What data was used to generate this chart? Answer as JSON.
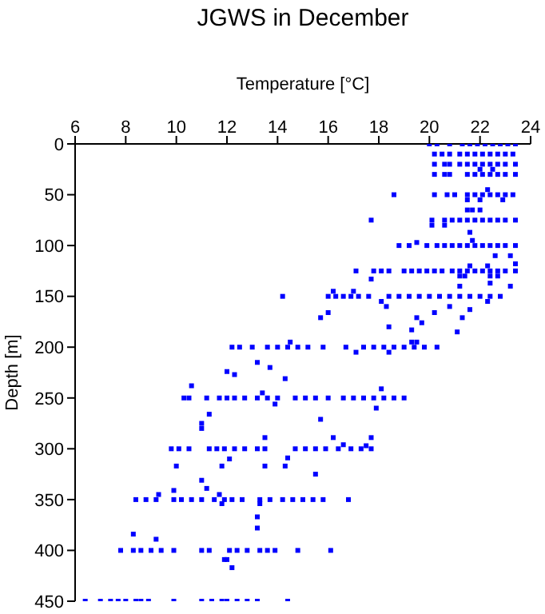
{
  "chart_data": {
    "type": "scatter",
    "title": "JGWS in December",
    "xlabel": "Temperature [°C]",
    "ylabel": "Depth [m]",
    "xlim": [
      6,
      24
    ],
    "xticks": [
      6,
      8,
      10,
      12,
      14,
      16,
      18,
      20,
      22,
      24
    ],
    "ylim": [
      450,
      0
    ],
    "yticks": [
      0,
      50,
      100,
      150,
      200,
      250,
      300,
      350,
      400,
      450
    ],
    "grid": false,
    "legend": false,
    "marker": "square",
    "series": [
      {
        "color": "#0000ff",
        "x": [
          20.0,
          20.3,
          20.8,
          21.3,
          21.6,
          21.9,
          22.2,
          22.5,
          22.8,
          23.1,
          23.4
        ],
        "values": [
          0,
          0,
          0,
          0,
          0,
          0,
          0,
          0,
          0,
          0,
          0
        ]
      },
      {
        "color": "#0000ff",
        "x": [
          20.2,
          20.5,
          20.8,
          21.2,
          21.5,
          21.8,
          22.1,
          22.4,
          22.7,
          23.0,
          23.3
        ],
        "values": [
          10,
          10,
          10,
          10,
          10,
          10,
          10,
          10,
          10,
          10,
          10
        ]
      },
      {
        "color": "#0000ff",
        "x": [
          20.2,
          20.6,
          20.8,
          21.2,
          21.5,
          21.8,
          22.1,
          22.4,
          22.7,
          23.0,
          23.4,
          22.0,
          22.5
        ],
        "values": [
          20,
          20,
          20,
          20,
          20,
          20,
          20,
          20,
          20,
          20,
          20,
          25,
          25
        ]
      },
      {
        "color": "#0000ff",
        "x": [
          20.2,
          20.6,
          20.8,
          21.5,
          21.8,
          22.1,
          22.4,
          22.7,
          23.0,
          23.4
        ],
        "values": [
          30,
          30,
          30,
          30,
          30,
          30,
          30,
          30,
          30,
          30
        ]
      },
      {
        "color": "#0000ff",
        "x": [
          18.6,
          20.2,
          20.7,
          21.0,
          21.5,
          21.8,
          22.1,
          22.4,
          22.7,
          23.0,
          23.3,
          22.3,
          21.5,
          22.0,
          22.9,
          21.5,
          21.7,
          22.0
        ],
        "values": [
          50,
          50,
          50,
          50,
          50,
          50,
          50,
          50,
          50,
          50,
          50,
          45,
          55,
          55,
          55,
          65,
          65,
          65
        ]
      },
      {
        "color": "#0000ff",
        "x": [
          17.7,
          20.1,
          20.6,
          20.9,
          21.2,
          21.5,
          21.8,
          22.1,
          22.4,
          22.7,
          23.0,
          23.4,
          20.1,
          20.6,
          21.6,
          21.7,
          19.5
        ],
        "values": [
          75,
          75,
          75,
          75,
          75,
          75,
          75,
          75,
          75,
          75,
          75,
          75,
          80,
          80,
          87,
          95,
          97
        ]
      },
      {
        "color": "#0000ff",
        "x": [
          18.8,
          19.2,
          19.9,
          20.3,
          20.6,
          20.9,
          21.2,
          21.5,
          21.8,
          22.1,
          22.4,
          22.7,
          23.0,
          23.4,
          22.6,
          23.2,
          23.4
        ],
        "values": [
          100,
          100,
          100,
          100,
          100,
          100,
          100,
          100,
          100,
          100,
          100,
          100,
          100,
          100,
          110,
          110,
          118
        ]
      },
      {
        "color": "#0000ff",
        "x": [
          17.1,
          17.8,
          18.1,
          18.4,
          19.0,
          19.3,
          19.6,
          19.9,
          20.2,
          20.5,
          20.9,
          21.2,
          21.5,
          21.8,
          22.1,
          22.4,
          22.7,
          23.0,
          23.4,
          21.6,
          22.3,
          21.2,
          21.4,
          22.4,
          22.7,
          17.7,
          21.2,
          23.2,
          22.4
        ],
        "values": [
          125,
          125,
          125,
          125,
          125,
          125,
          125,
          125,
          125,
          125,
          125,
          125,
          125,
          125,
          125,
          125,
          125,
          125,
          125,
          120,
          120,
          130,
          130,
          130,
          130,
          133,
          140,
          140,
          137
        ]
      },
      {
        "color": "#0000ff",
        "x": [
          14.2,
          16.0,
          16.3,
          16.6,
          16.9,
          17.2,
          17.6,
          18.4,
          18.8,
          19.2,
          19.6,
          20.0,
          20.4,
          20.8,
          21.2,
          21.6,
          22.0,
          22.4,
          22.8,
          16.2,
          17.0,
          18.1,
          22.3,
          18.3,
          20.8,
          21.6,
          16.0,
          20.2,
          15.7,
          19.5,
          21.3,
          19.7,
          18.4,
          19.3,
          21.1
        ],
        "values": [
          150,
          150,
          150,
          150,
          150,
          150,
          150,
          150,
          150,
          150,
          150,
          150,
          150,
          150,
          150,
          150,
          150,
          150,
          150,
          145,
          145,
          155,
          155,
          160,
          160,
          163,
          166,
          166,
          171,
          171,
          171,
          176,
          180,
          183,
          185
        ]
      },
      {
        "color": "#0000ff",
        "x": [
          12.2,
          12.5,
          13.0,
          13.6,
          14.0,
          14.4,
          14.8,
          15.2,
          15.8,
          16.7,
          17.4,
          17.8,
          18.2,
          18.6,
          19.0,
          19.4,
          19.8,
          20.3,
          14.5,
          19.3,
          19.5,
          17.1,
          18.4,
          13.2,
          13.7,
          12.0,
          12.3,
          14.3,
          10.6,
          18.1,
          13.4
        ],
        "values": [
          200,
          200,
          200,
          200,
          200,
          200,
          200,
          200,
          200,
          200,
          200,
          200,
          200,
          200,
          200,
          200,
          200,
          200,
          195,
          195,
          195,
          205,
          205,
          215,
          220,
          224,
          227,
          231,
          238,
          241,
          245
        ]
      },
      {
        "color": "#0000ff",
        "x": [
          10.3,
          10.5,
          11.2,
          11.7,
          12.0,
          12.3,
          12.7,
          13.2,
          13.6,
          14.0,
          14.7,
          15.1,
          15.5,
          16.0,
          16.6,
          17.0,
          17.4,
          17.8,
          18.2,
          18.6,
          19.0,
          13.9,
          17.9,
          11.3,
          15.7,
          11.0,
          11.0,
          13.5,
          16.2,
          17.7,
          16.6,
          17.5
        ],
        "values": [
          250,
          250,
          250,
          250,
          250,
          250,
          250,
          250,
          250,
          250,
          250,
          250,
          250,
          250,
          250,
          250,
          250,
          250,
          250,
          250,
          250,
          256,
          260,
          266,
          271,
          275,
          280,
          289,
          289,
          289,
          296,
          297
        ]
      },
      {
        "color": "#0000ff",
        "x": [
          9.8,
          10.1,
          10.5,
          11.3,
          11.6,
          11.9,
          12.3,
          12.7,
          13.2,
          13.5,
          14.7,
          15.1,
          15.5,
          15.9,
          16.4,
          16.9,
          17.3,
          17.7,
          14.4,
          12.1,
          10.0,
          11.8,
          13.5,
          14.3,
          15.5,
          11.0,
          11.2,
          9.9,
          11.7,
          9.3
        ],
        "values": [
          300,
          300,
          300,
          300,
          300,
          300,
          300,
          300,
          300,
          300,
          300,
          300,
          300,
          300,
          300,
          300,
          300,
          300,
          309,
          310,
          317,
          317,
          317,
          317,
          325,
          331,
          339,
          341,
          345,
          345
        ]
      },
      {
        "color": "#0000ff",
        "x": [
          8.4,
          8.8,
          9.2,
          9.9,
          10.2,
          10.6,
          11.0,
          11.5,
          11.9,
          12.2,
          12.6,
          13.3,
          13.7,
          14.2,
          14.6,
          15.0,
          15.4,
          15.8,
          16.8,
          11.8,
          13.3,
          13.2,
          13.2,
          8.3,
          9.2
        ],
        "values": [
          350,
          350,
          350,
          350,
          350,
          350,
          350,
          350,
          350,
          350,
          350,
          350,
          350,
          350,
          350,
          350,
          350,
          350,
          350,
          354,
          354,
          367,
          378,
          384,
          389
        ]
      },
      {
        "color": "#0000ff",
        "x": [
          7.8,
          8.3,
          8.6,
          9.0,
          9.4,
          9.9,
          11.0,
          11.3,
          12.1,
          12.4,
          12.8,
          13.3,
          13.6,
          13.9,
          14.8,
          16.1,
          11.9,
          12.0,
          12.2
        ],
        "values": [
          400,
          400,
          400,
          400,
          400,
          400,
          400,
          400,
          400,
          400,
          400,
          400,
          400,
          400,
          400,
          400,
          409,
          409,
          417
        ]
      },
      {
        "color": "#0000ff",
        "x": [
          6.4,
          7.0,
          7.4,
          7.7,
          8.0,
          8.4,
          8.6,
          8.9,
          9.9,
          11.0,
          11.4,
          11.8,
          12.0,
          12.4,
          12.8,
          13.2,
          14.4
        ],
        "values": [
          450,
          450,
          450,
          450,
          450,
          450,
          450,
          450,
          450,
          450,
          450,
          450,
          450,
          450,
          450,
          450,
          450
        ]
      }
    ]
  }
}
